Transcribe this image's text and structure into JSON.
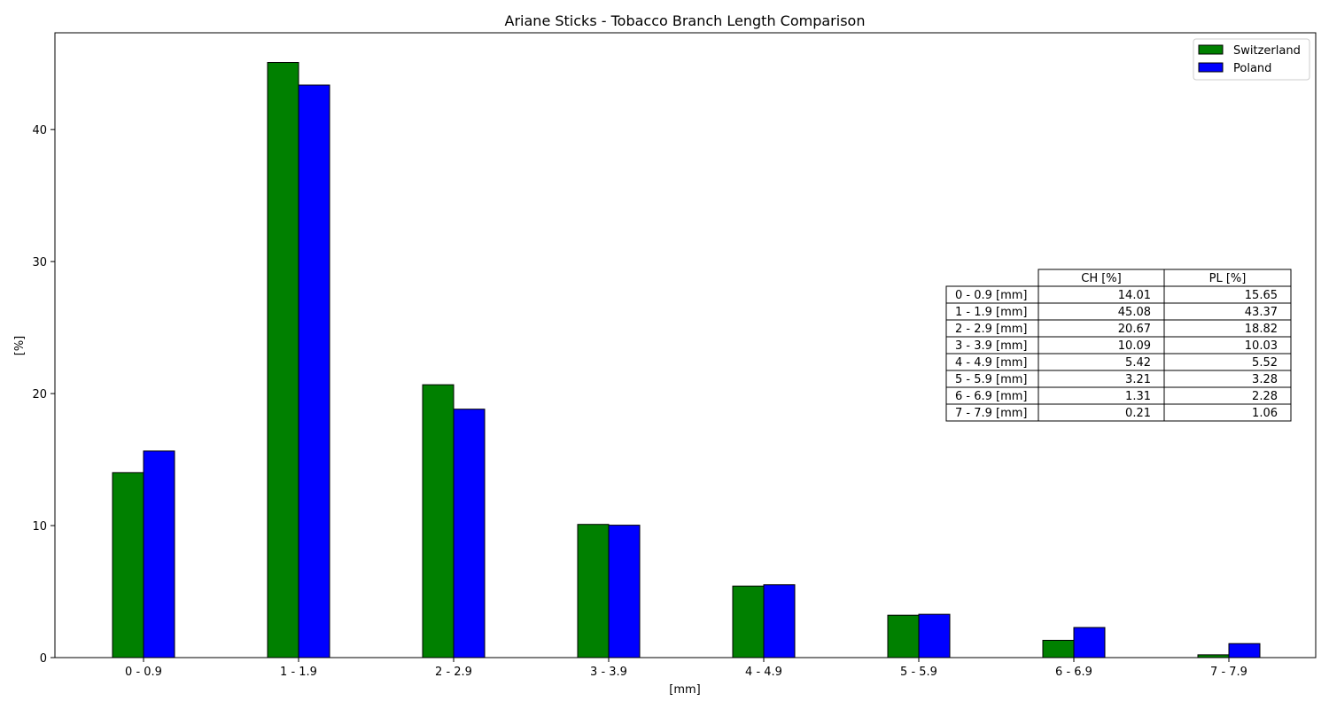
{
  "chart_data": {
    "type": "bar",
    "title": "Ariane Sticks - Tobacco Branch Length Comparison",
    "xlabel": "[mm]",
    "ylabel": "[%]",
    "categories": [
      "0 - 0.9",
      "1 - 1.9",
      "2 - 2.9",
      "3 - 3.9",
      "4 - 4.9",
      "5 - 5.9",
      "6 - 6.9",
      "7 - 7.9"
    ],
    "series": [
      {
        "name": "Switzerland",
        "color": "#008000",
        "values": [
          14.01,
          45.08,
          20.67,
          10.09,
          5.42,
          3.21,
          1.31,
          0.21
        ]
      },
      {
        "name": "Poland",
        "color": "#0000ff",
        "values": [
          15.65,
          43.37,
          18.82,
          10.03,
          5.52,
          3.28,
          2.28,
          1.06
        ]
      }
    ],
    "ylim": [
      0,
      47.33
    ],
    "yticks": [
      0,
      10,
      20,
      30,
      40
    ],
    "grid": false,
    "legend": "top-right",
    "table": {
      "col_headers": [
        "CH [%]",
        "PL [%]"
      ],
      "rows": [
        {
          "label": "0 - 0.9 [mm]",
          "cells": [
            "14.01",
            "15.65"
          ]
        },
        {
          "label": "1 - 1.9 [mm]",
          "cells": [
            "45.08",
            "43.37"
          ]
        },
        {
          "label": "2 - 2.9 [mm]",
          "cells": [
            "20.67",
            "18.82"
          ]
        },
        {
          "label": "3 - 3.9 [mm]",
          "cells": [
            "10.09",
            "10.03"
          ]
        },
        {
          "label": "4 - 4.9 [mm]",
          "cells": [
            "5.42",
            "5.52"
          ]
        },
        {
          "label": "5 - 5.9 [mm]",
          "cells": [
            "3.21",
            "3.28"
          ]
        },
        {
          "label": "6 - 6.9 [mm]",
          "cells": [
            "1.31",
            "2.28"
          ]
        },
        {
          "label": "7 - 7.9 [mm]",
          "cells": [
            "0.21",
            "1.06"
          ]
        }
      ]
    }
  }
}
